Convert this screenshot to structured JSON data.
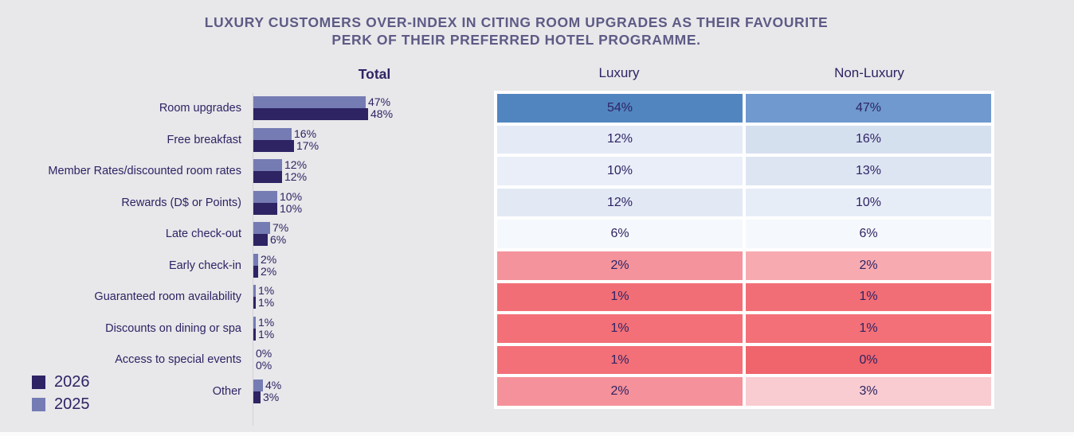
{
  "title": {
    "line1": "LUXURY CUSTOMERS OVER-INDEX IN CITING ROOM UPGRADES AS THEIR FAVOURITE",
    "line2": "PERK OF THEIR PREFERRED HOTEL PROGRAMME."
  },
  "colors": {
    "background": "#e8e7ea",
    "title_text": "#5d5b85",
    "dark_text": "#2e2363",
    "axis_line": "#d2d1d7",
    "table_background": "#ffffff",
    "series_2025": "#757cb4",
    "series_2026": "#2e2363"
  },
  "chart_data": [
    {
      "type": "bar",
      "orientation": "horizontal",
      "title": "Total",
      "unit": "%",
      "xlim": [
        0,
        50
      ],
      "categories": [
        "Room upgrades",
        "Free breakfast",
        "Member Rates/discounted room rates",
        "Rewards (D$ or Points)",
        "Late check-out",
        "Early check-in",
        "Guaranteed room availability",
        "Discounts on dining or spa",
        "Access to special events",
        "Other"
      ],
      "series": [
        {
          "name": "2025",
          "color": "#757cb4",
          "values": [
            47,
            16,
            12,
            10,
            7,
            2,
            1,
            1,
            0,
            4
          ]
        },
        {
          "name": "2026",
          "color": "#2e2363",
          "values": [
            48,
            17,
            12,
            10,
            6,
            2,
            1,
            1,
            0,
            3
          ]
        }
      ],
      "legend_position": "bottom-left",
      "legend_order": [
        "2026",
        "2025"
      ]
    },
    {
      "type": "heatmap",
      "unit": "%",
      "columns": [
        "Luxury",
        "Non-Luxury"
      ],
      "rows": [
        "Room upgrades",
        "Free breakfast",
        "Member Rates/discounted room rates",
        "Rewards (D$ or Points)",
        "Late check-out",
        "Early check-in",
        "Guaranteed room availability",
        "Discounts on dining or spa",
        "Access to special events",
        "Other"
      ],
      "series": [
        {
          "name": "Luxury",
          "values": [
            54,
            12,
            10,
            12,
            6,
            2,
            1,
            1,
            1,
            2
          ],
          "cell_colors": [
            "#5185c0",
            "#e4eaf6",
            "#e9eef8",
            "#e2e9f5",
            "#f5f8fc",
            "#f4939b",
            "#f26e76",
            "#f37078",
            "#f37078",
            "#f5919a"
          ]
        },
        {
          "name": "Non-Luxury",
          "values": [
            47,
            16,
            13,
            10,
            6,
            2,
            1,
            1,
            0,
            3
          ],
          "cell_colors": [
            "#6f99cf",
            "#d5e0ef",
            "#dde5f2",
            "#e7edf7",
            "#f5f8fc",
            "#f7abb1",
            "#f26e76",
            "#f37078",
            "#f0646c",
            "#f8ccd1"
          ]
        }
      ]
    }
  ]
}
